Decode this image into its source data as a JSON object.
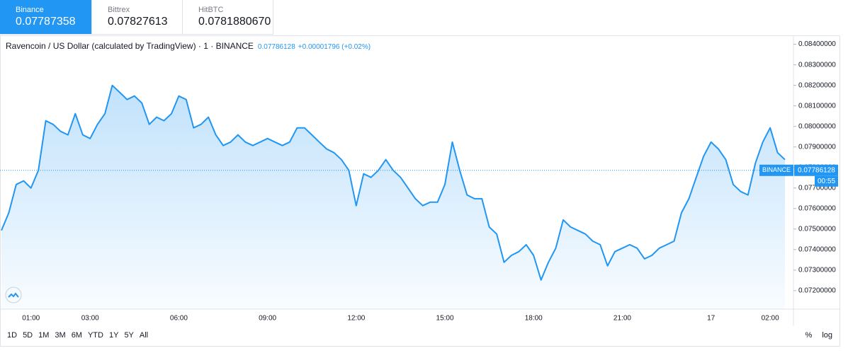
{
  "tabs": [
    {
      "name": "Binance",
      "price": "0.07787358"
    },
    {
      "name": "Bittrex",
      "price": "0.07827613"
    },
    {
      "name": "HitBTC",
      "price": "0.0781880670"
    }
  ],
  "ranges": [
    "1D",
    "5D",
    "1M",
    "3M",
    "6M",
    "YTD",
    "1Y",
    "5Y",
    "All"
  ],
  "options": [
    "%",
    "log"
  ],
  "chart_data": {
    "type": "area",
    "title": "Ravencoin / US Dollar (calculated by TradingView) · 1 · BINANCE",
    "change": "+0.00001796 (+0.02%)",
    "last_price": 0.07786128,
    "price_tag": "BINANCE",
    "countdown": "00:55",
    "color": "#2196f3",
    "grid": false,
    "categories": [
      null,
      null,
      null,
      null,
      "01:00",
      null,
      null,
      null,
      null,
      null,
      null,
      null,
      "03:00",
      null,
      null,
      null,
      null,
      null,
      null,
      null,
      null,
      null,
      null,
      null,
      "06:00",
      null,
      null,
      null,
      null,
      null,
      null,
      null,
      null,
      null,
      null,
      null,
      "09:00",
      null,
      null,
      null,
      null,
      null,
      null,
      null,
      null,
      null,
      null,
      null,
      "12:00",
      null,
      null,
      null,
      null,
      null,
      null,
      null,
      null,
      null,
      null,
      null,
      "15:00",
      null,
      null,
      null,
      null,
      null,
      null,
      null,
      null,
      null,
      null,
      null,
      "18:00",
      null,
      null,
      null,
      null,
      null,
      null,
      null,
      null,
      null,
      null,
      null,
      "21:00",
      null,
      null,
      null,
      null,
      null,
      null,
      null,
      null,
      null,
      null,
      null,
      "17",
      null,
      null,
      null,
      null,
      null,
      null,
      null,
      "02:00",
      null,
      null
    ],
    "values": [
      0.07493,
      0.07579,
      0.07717,
      0.07735,
      0.077,
      0.07786,
      0.08028,
      0.0801,
      0.07976,
      0.07959,
      0.08062,
      0.07959,
      0.07941,
      0.0801,
      0.08062,
      0.082,
      0.08166,
      0.08131,
      0.08148,
      0.08114,
      0.0801,
      0.08045,
      0.08028,
      0.08062,
      0.08148,
      0.08131,
      0.07993,
      0.0801,
      0.08045,
      0.07959,
      0.07907,
      0.07924,
      0.07959,
      0.07924,
      0.07907,
      0.07924,
      0.07941,
      0.07924,
      0.07907,
      0.07924,
      0.07993,
      0.07993,
      0.07959,
      0.07924,
      0.0789,
      0.07872,
      0.07838,
      0.07786,
      0.07614,
      0.07769,
      0.07752,
      0.07786,
      0.07838,
      0.07786,
      0.07752,
      0.077,
      0.07648,
      0.07614,
      0.07631,
      0.07631,
      0.07717,
      0.07924,
      0.07786,
      0.07666,
      0.07648,
      0.07648,
      0.0751,
      0.07476,
      0.07338,
      0.07372,
      0.0739,
      0.07424,
      0.07372,
      0.07252,
      0.07338,
      0.07407,
      0.07545,
      0.0751,
      0.07493,
      0.07476,
      0.07441,
      0.07424,
      0.07321,
      0.0739,
      0.07407,
      0.07424,
      0.07407,
      0.07355,
      0.07372,
      0.07407,
      0.07424,
      0.07441,
      0.07579,
      0.07648,
      0.07752,
      0.07855,
      0.07924,
      0.0789,
      0.07838,
      0.07717,
      0.07683,
      0.07666,
      0.07821,
      0.07924,
      0.07993,
      0.07872,
      0.07838
    ],
    "ylim": [
      0.0711,
      0.0844
    ],
    "yticks": [
      {
        "value": 0.072,
        "label": "0.07200000"
      },
      {
        "value": 0.073,
        "label": "0.07300000"
      },
      {
        "value": 0.074,
        "label": "0.07400000"
      },
      {
        "value": 0.075,
        "label": "0.07500000"
      },
      {
        "value": 0.076,
        "label": "0.07600000"
      },
      {
        "value": 0.077,
        "label": "0.07700000"
      },
      {
        "value": 0.078,
        "label": "0.07800000"
      },
      {
        "value": 0.079,
        "label": "0.07900000"
      },
      {
        "value": 0.08,
        "label": "0.08000000"
      },
      {
        "value": 0.081,
        "label": "0.08100000"
      },
      {
        "value": 0.082,
        "label": "0.08200000"
      },
      {
        "value": 0.083,
        "label": "0.08300000"
      },
      {
        "value": 0.084,
        "label": "0.08400000"
      }
    ]
  }
}
